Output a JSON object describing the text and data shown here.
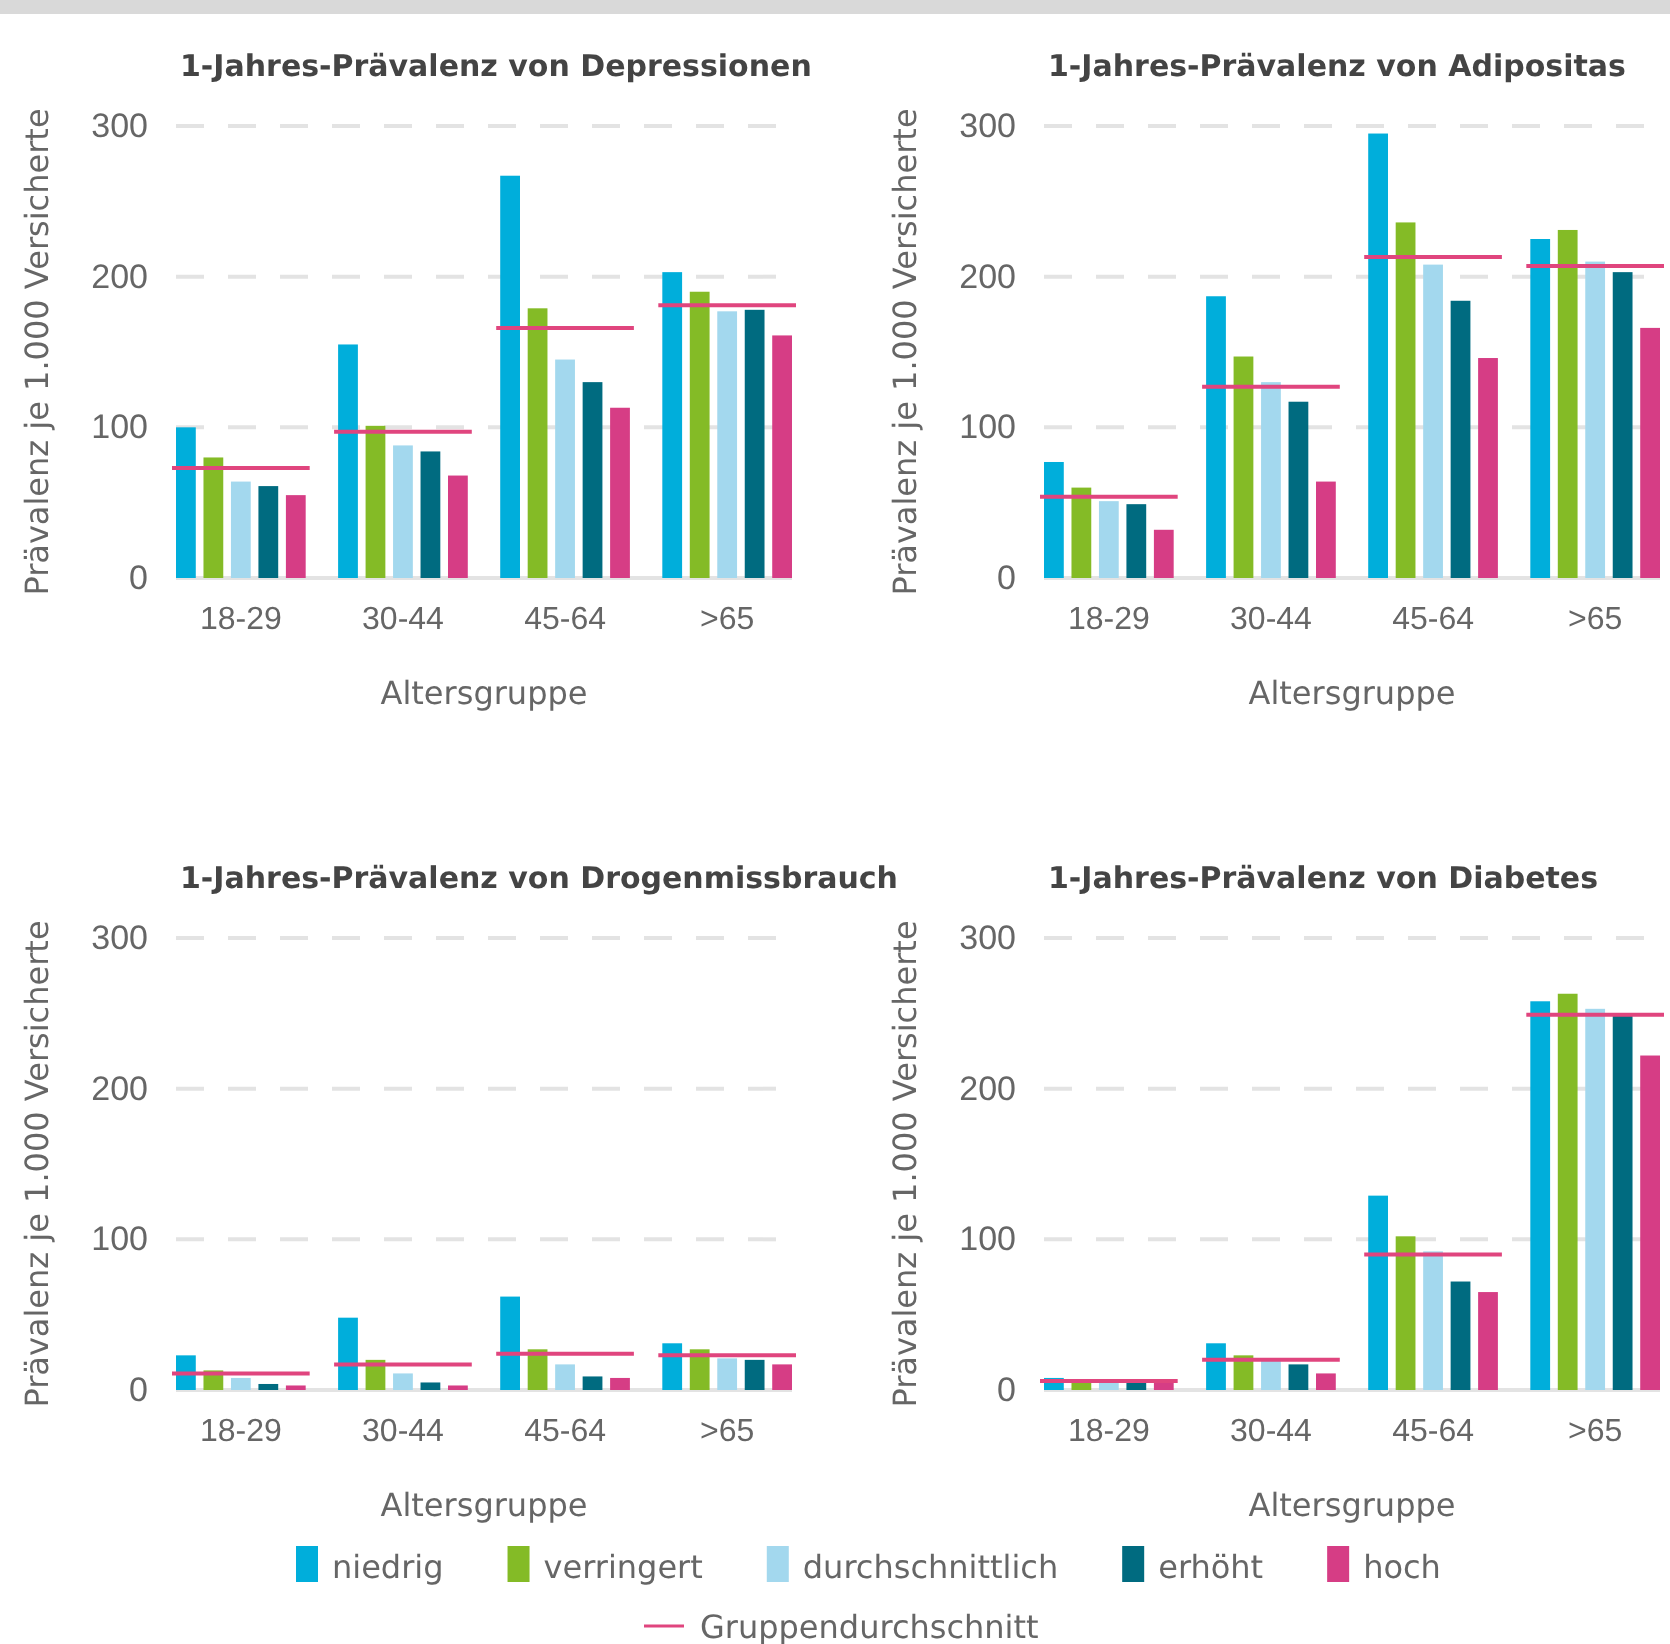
{
  "chart_data": [
    {
      "type": "bar",
      "title": "1-Jahres-Prävalenz von Depressionen",
      "xlabel": "Altersgruppe",
      "ylabel": "Prävalenz je 1.000 Versicherte",
      "categories": [
        "18-29",
        "30-44",
        "45-64",
        ">65"
      ],
      "ylim": [
        0,
        300
      ],
      "yticks": [
        0,
        100,
        200,
        300
      ],
      "grid": "y",
      "series": [
        {
          "color": "#00aedb",
          "values": [
            100,
            155,
            267,
            203
          ]
        },
        {
          "color": "#84bb26",
          "values": [
            80,
            101,
            179,
            190
          ]
        },
        {
          "color": "#a3d8ee",
          "values": [
            64,
            88,
            145,
            177
          ]
        },
        {
          "color": "#006b80",
          "values": [
            61,
            84,
            130,
            178
          ]
        },
        {
          "color": "#d63d85",
          "values": [
            55,
            68,
            113,
            161
          ]
        }
      ],
      "ref_lines": [
        {
          "axis": "y",
          "value": 73,
          "color": "#e0457e"
        },
        {
          "axis": "y",
          "value": 97,
          "color": "#e0457e"
        },
        {
          "axis": "y",
          "value": 166,
          "color": "#e0457e"
        },
        {
          "axis": "y",
          "value": 181,
          "color": "#e0457e"
        }
      ]
    },
    {
      "type": "bar",
      "title": "1-Jahres-Prävalenz von Adipositas",
      "xlabel": "Altersgruppe",
      "ylabel": "Prävalenz je 1.000 Versicherte",
      "categories": [
        "18-29",
        "30-44",
        "45-64",
        ">65"
      ],
      "ylim": [
        0,
        300
      ],
      "yticks": [
        0,
        100,
        200,
        300
      ],
      "grid": "y",
      "series": [
        {
          "color": "#00aedb",
          "values": [
            77,
            187,
            295,
            225
          ]
        },
        {
          "color": "#84bb26",
          "values": [
            60,
            147,
            236,
            231
          ]
        },
        {
          "color": "#a3d8ee",
          "values": [
            51,
            130,
            208,
            210
          ]
        },
        {
          "color": "#006b80",
          "values": [
            49,
            117,
            184,
            203
          ]
        },
        {
          "color": "#d63d85",
          "values": [
            32,
            64,
            146,
            166
          ]
        }
      ],
      "ref_lines": [
        {
          "axis": "y",
          "value": 54,
          "color": "#e0457e"
        },
        {
          "axis": "y",
          "value": 127,
          "color": "#e0457e"
        },
        {
          "axis": "y",
          "value": 213,
          "color": "#e0457e"
        },
        {
          "axis": "y",
          "value": 207,
          "color": "#e0457e"
        }
      ]
    },
    {
      "type": "bar",
      "title": "1-Jahres-Prävalenz von Drogenmissbrauch",
      "xlabel": "Altersgruppe",
      "ylabel": "Prävalenz je 1.000 Versicherte",
      "categories": [
        "18-29",
        "30-44",
        "45-64",
        ">65"
      ],
      "ylim": [
        0,
        300
      ],
      "yticks": [
        0,
        100,
        200,
        300
      ],
      "grid": "y",
      "series": [
        {
          "color": "#00aedb",
          "values": [
            23,
            48,
            62,
            31
          ]
        },
        {
          "color": "#84bb26",
          "values": [
            13,
            20,
            27,
            27
          ]
        },
        {
          "color": "#a3d8ee",
          "values": [
            8,
            11,
            17,
            21
          ]
        },
        {
          "color": "#006b80",
          "values": [
            4,
            5,
            9,
            20
          ]
        },
        {
          "color": "#d63d85",
          "values": [
            3,
            3,
            8,
            17
          ]
        }
      ],
      "ref_lines": [
        {
          "axis": "y",
          "value": 11,
          "color": "#e0457e"
        },
        {
          "axis": "y",
          "value": 17,
          "color": "#e0457e"
        },
        {
          "axis": "y",
          "value": 24,
          "color": "#e0457e"
        },
        {
          "axis": "y",
          "value": 23,
          "color": "#e0457e"
        }
      ]
    },
    {
      "type": "bar",
      "title": "1-Jahres-Prävalenz von Diabetes",
      "xlabel": "Altersgruppe",
      "ylabel": "Prävalenz je 1.000 Versicherte",
      "categories": [
        "18-29",
        "30-44",
        "45-64",
        ">65"
      ],
      "ylim": [
        0,
        300
      ],
      "yticks": [
        0,
        100,
        200,
        300
      ],
      "grid": "y",
      "legend": "bottom",
      "series": [
        {
          "name": "niedrig",
          "color": "#00aedb",
          "values": [
            8,
            31,
            129,
            258
          ]
        },
        {
          "name": "verringert",
          "color": "#84bb26",
          "values": [
            7,
            23,
            102,
            263
          ]
        },
        {
          "name": "durchschnittlich",
          "color": "#a3d8ee",
          "values": [
            6,
            20,
            92,
            253
          ]
        },
        {
          "name": "erhöht",
          "color": "#006b80",
          "values": [
            5,
            17,
            72,
            250
          ]
        },
        {
          "name": "hoch",
          "color": "#d63d85",
          "values": [
            6,
            11,
            65,
            222
          ]
        }
      ],
      "ref_lines": [
        {
          "axis": "y",
          "value": 6,
          "color": "#e0457e",
          "label": "Gruppendurchschnitt"
        },
        {
          "axis": "y",
          "value": 20,
          "color": "#e0457e"
        },
        {
          "axis": "y",
          "value": 90,
          "color": "#e0457e"
        },
        {
          "axis": "y",
          "value": 249,
          "color": "#e0457e"
        }
      ]
    }
  ]
}
